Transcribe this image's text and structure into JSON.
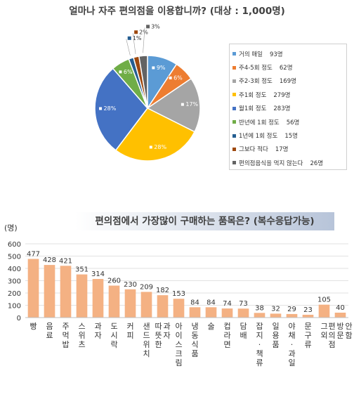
{
  "chart_data": [
    {
      "type": "pie",
      "title": "얼마나 자주 편의점을 이용합니까? (대상 : 1,000명)",
      "slices": [
        {
          "label": "거의 매일",
          "value": 93,
          "pct_label": "9%",
          "legend_value": "93명",
          "color": "#5b9bd5"
        },
        {
          "label": "주4-5회 정도",
          "value": 62,
          "pct_label": "6%",
          "legend_value": "62명",
          "color": "#ed7d31"
        },
        {
          "label": "주2-3회 정도",
          "value": 169,
          "pct_label": "17%",
          "legend_value": "169명",
          "color": "#a5a5a5"
        },
        {
          "label": "주1회 정도",
          "value": 279,
          "pct_label": "28%",
          "legend_value": "279명",
          "color": "#ffc000"
        },
        {
          "label": "월1회 정도",
          "value": 283,
          "pct_label": "28%",
          "legend_value": "283명",
          "color": "#4472c4"
        },
        {
          "label": "반년에 1회 정도",
          "value": 56,
          "pct_label": "6%",
          "legend_value": "56명",
          "color": "#70ad47"
        },
        {
          "label": "1년에 1회 정도",
          "value": 15,
          "pct_label": "1%",
          "legend_value": "15명",
          "color": "#255e91"
        },
        {
          "label": "그보다 적다",
          "value": 17,
          "pct_label": "2%",
          "legend_value": "17명",
          "color": "#9e480e"
        },
        {
          "label": "편의점음식을 먹지 않는다",
          "value": 26,
          "pct_label": "3%",
          "legend_value": "26명",
          "color": "#636363"
        }
      ]
    },
    {
      "type": "bar",
      "title": "편의점에서 가장많이 구매하는 품목은? (복수응답가능)",
      "ylabel": "(명)",
      "ylim": [
        0,
        600
      ],
      "yticks": [
        "0",
        "100",
        "200",
        "300",
        "400",
        "500",
        "600"
      ],
      "bar_color": "#f4b183",
      "categories": [
        "빵",
        "음료",
        "주먹밥",
        "스위츠",
        "과자",
        "도시락",
        "커피",
        "샌드위치",
        "따뜻한 과자",
        "아이스크림",
        "냉동식품",
        "술",
        "컵라면",
        "담배",
        "잡지·책류",
        "일용품",
        "야채·과일",
        "문구류",
        "그외",
        "편의점 방문 안함"
      ],
      "values": [
        477,
        428,
        421,
        351,
        314,
        260,
        230,
        209,
        182,
        153,
        84,
        84,
        74,
        73,
        38,
        32,
        29,
        23,
        105,
        40
      ]
    }
  ]
}
